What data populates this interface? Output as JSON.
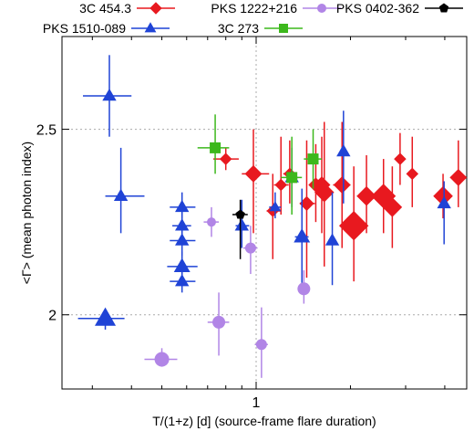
{
  "chart_data": {
    "type": "scatter",
    "xscale": "log",
    "xlim": [
      0.24,
      4.7
    ],
    "ylim": [
      1.8,
      2.75
    ],
    "grid": true,
    "legend_placement": "top",
    "xlabel": "T/(1+z) [d] (source-frame flare duration)",
    "ylabel": "<Γ> (mean photon index)",
    "xticks": [
      {
        "value": 1,
        "label": "1"
      }
    ],
    "yticks": [
      {
        "value": 2,
        "label": "2"
      },
      {
        "value": 2.5,
        "label": "2.5"
      }
    ],
    "series": [
      {
        "name": "3C 454.3",
        "color": "#e8191f",
        "marker": "diamond",
        "points": [
          {
            "x": 0.8,
            "y": 2.42,
            "xlo": 0.73,
            "xhi": 0.88,
            "ylo": 2.39,
            "yhi": 2.45,
            "s": 5
          },
          {
            "x": 0.98,
            "y": 2.38,
            "xlo": 0.9,
            "xhi": 1.1,
            "ylo": 2.22,
            "yhi": 2.5,
            "s": 7
          },
          {
            "x": 1.13,
            "y": 2.28,
            "xlo": 1.08,
            "xhi": 1.2,
            "ylo": 2.15,
            "yhi": 2.38,
            "s": 5
          },
          {
            "x": 1.2,
            "y": 2.35,
            "xlo": 1.14,
            "xhi": 1.27,
            "ylo": 2.27,
            "yhi": 2.48,
            "s": 5
          },
          {
            "x": 1.28,
            "y": 2.38,
            "xlo": 1.22,
            "xhi": 1.35,
            "ylo": 2.3,
            "yhi": 2.47,
            "s": 5
          },
          {
            "x": 1.45,
            "y": 2.3,
            "xlo": 1.38,
            "xhi": 1.54,
            "ylo": 2.1,
            "yhi": 2.47,
            "s": 6
          },
          {
            "x": 1.55,
            "y": 2.35,
            "xlo": 1.48,
            "xhi": 1.63,
            "ylo": 2.25,
            "yhi": 2.46,
            "s": 6
          },
          {
            "x": 1.62,
            "y": 2.35,
            "xlo": 1.55,
            "xhi": 1.7,
            "ylo": 2.22,
            "yhi": 2.48,
            "s": 7
          },
          {
            "x": 1.65,
            "y": 2.33,
            "xlo": 1.58,
            "xhi": 1.73,
            "ylo": 2.13,
            "yhi": 2.52,
            "s": 8
          },
          {
            "x": 1.88,
            "y": 2.35,
            "xlo": 1.76,
            "xhi": 2.0,
            "ylo": 2.18,
            "yhi": 2.52,
            "s": 7
          },
          {
            "x": 2.05,
            "y": 2.24,
            "xlo": 1.93,
            "xhi": 2.18,
            "ylo": 2.09,
            "yhi": 2.4,
            "s": 12
          },
          {
            "x": 2.25,
            "y": 2.32,
            "xlo": 2.1,
            "xhi": 2.4,
            "ylo": 2.22,
            "yhi": 2.43,
            "s": 8
          },
          {
            "x": 2.55,
            "y": 2.32,
            "xlo": 2.36,
            "xhi": 2.75,
            "ylo": 2.22,
            "yhi": 2.42,
            "s": 10
          },
          {
            "x": 2.72,
            "y": 2.29,
            "xlo": 2.58,
            "xhi": 2.87,
            "ylo": 2.18,
            "yhi": 2.4,
            "s": 8
          },
          {
            "x": 2.88,
            "y": 2.42,
            "xlo": 2.78,
            "xhi": 2.98,
            "ylo": 2.35,
            "yhi": 2.49,
            "s": 5
          },
          {
            "x": 3.15,
            "y": 2.38,
            "xlo": 3.05,
            "xhi": 3.25,
            "ylo": 2.29,
            "yhi": 2.48,
            "s": 5
          },
          {
            "x": 3.95,
            "y": 2.32,
            "xlo": 3.78,
            "xhi": 4.12,
            "ylo": 2.26,
            "yhi": 2.38,
            "s": 8
          },
          {
            "x": 4.42,
            "y": 2.37,
            "xlo": 4.28,
            "xhi": 4.56,
            "ylo": 2.29,
            "yhi": 2.47,
            "s": 7
          }
        ]
      },
      {
        "name": "PKS 1510-089",
        "color": "#1f43d6",
        "marker": "triangle",
        "points": [
          {
            "x": 0.34,
            "y": 2.59,
            "xlo": 0.28,
            "xhi": 0.4,
            "ylo": 2.48,
            "yhi": 2.7,
            "s": 6
          },
          {
            "x": 0.37,
            "y": 2.32,
            "xlo": 0.33,
            "xhi": 0.44,
            "ylo": 2.22,
            "yhi": 2.45,
            "s": 6
          },
          {
            "x": 0.33,
            "y": 1.99,
            "xlo": 0.27,
            "xhi": 0.38,
            "ylo": 1.96,
            "yhi": 2.01,
            "s": 9
          },
          {
            "x": 0.58,
            "y": 2.29,
            "xlo": 0.53,
            "xhi": 0.64,
            "ylo": 2.26,
            "yhi": 2.33,
            "s": 6
          },
          {
            "x": 0.58,
            "y": 2.24,
            "xlo": 0.54,
            "xhi": 0.62,
            "ylo": 2.2,
            "yhi": 2.3,
            "s": 6
          },
          {
            "x": 0.58,
            "y": 2.2,
            "xlo": 0.53,
            "xhi": 0.64,
            "ylo": 2.16,
            "yhi": 2.24,
            "s": 6
          },
          {
            "x": 0.58,
            "y": 2.13,
            "xlo": 0.52,
            "xhi": 0.65,
            "ylo": 2.09,
            "yhi": 2.17,
            "s": 7
          },
          {
            "x": 0.58,
            "y": 2.09,
            "xlo": 0.53,
            "xhi": 0.64,
            "ylo": 2.06,
            "yhi": 2.12,
            "s": 6
          },
          {
            "x": 0.9,
            "y": 2.24,
            "xlo": 0.86,
            "xhi": 0.95,
            "ylo": 2.18,
            "yhi": 2.31,
            "s": 6
          },
          {
            "x": 1.15,
            "y": 2.29,
            "xlo": 1.1,
            "xhi": 1.2,
            "ylo": 2.26,
            "yhi": 2.33,
            "s": 5
          },
          {
            "x": 1.3,
            "y": 2.37,
            "xlo": 1.25,
            "xhi": 1.36,
            "ylo": 2.29,
            "yhi": 2.45,
            "s": 6
          },
          {
            "x": 1.4,
            "y": 2.21,
            "xlo": 1.33,
            "xhi": 1.47,
            "ylo": 2.08,
            "yhi": 2.34,
            "s": 7
          },
          {
            "x": 1.75,
            "y": 2.2,
            "xlo": 1.7,
            "xhi": 1.8,
            "ylo": 2.08,
            "yhi": 2.33,
            "s": 6
          },
          {
            "x": 1.9,
            "y": 2.44,
            "xlo": 1.85,
            "xhi": 1.95,
            "ylo": 2.3,
            "yhi": 2.55,
            "s": 6
          },
          {
            "x": 3.98,
            "y": 2.3,
            "xlo": 3.9,
            "xhi": 4.06,
            "ylo": 2.19,
            "yhi": 2.36,
            "s": 6
          }
        ]
      },
      {
        "name": "PKS 1222+216",
        "color": "#b185e6",
        "marker": "circle",
        "points": [
          {
            "x": 0.5,
            "y": 1.88,
            "xlo": 0.44,
            "xhi": 0.56,
            "ylo": 1.86,
            "yhi": 1.91,
            "s": 8
          },
          {
            "x": 0.76,
            "y": 1.98,
            "xlo": 0.7,
            "xhi": 0.82,
            "ylo": 1.89,
            "yhi": 2.06,
            "s": 7
          },
          {
            "x": 0.72,
            "y": 2.25,
            "xlo": 0.68,
            "xhi": 0.76,
            "ylo": 2.21,
            "yhi": 2.29,
            "s": 5
          },
          {
            "x": 0.96,
            "y": 2.18,
            "xlo": 0.91,
            "xhi": 1.01,
            "ylo": 2.11,
            "yhi": 2.24,
            "s": 6
          },
          {
            "x": 1.04,
            "y": 1.92,
            "xlo": 0.99,
            "xhi": 1.09,
            "ylo": 1.83,
            "yhi": 2.02,
            "s": 6
          },
          {
            "x": 1.42,
            "y": 2.07,
            "xlo": 1.37,
            "xhi": 1.47,
            "ylo": 2.03,
            "yhi": 2.12,
            "s": 7
          }
        ]
      },
      {
        "name": "3C 273",
        "color": "#3cb81c",
        "marker": "square",
        "points": [
          {
            "x": 0.74,
            "y": 2.45,
            "xlo": 0.65,
            "xhi": 0.82,
            "ylo": 2.38,
            "yhi": 2.54,
            "s": 6
          },
          {
            "x": 1.3,
            "y": 2.37,
            "xlo": 1.2,
            "xhi": 1.4,
            "ylo": 2.27,
            "yhi": 2.48,
            "s": 6
          },
          {
            "x": 1.52,
            "y": 2.42,
            "xlo": 1.42,
            "xhi": 1.62,
            "ylo": 2.34,
            "yhi": 2.5,
            "s": 6
          }
        ]
      },
      {
        "name": "PKS 0402-362",
        "color": "#000000",
        "marker": "pentagon",
        "points": [
          {
            "x": 0.89,
            "y": 2.27,
            "xlo": 0.84,
            "xhi": 0.94,
            "ylo": 2.15,
            "yhi": 2.31,
            "s": 5
          }
        ]
      }
    ]
  }
}
